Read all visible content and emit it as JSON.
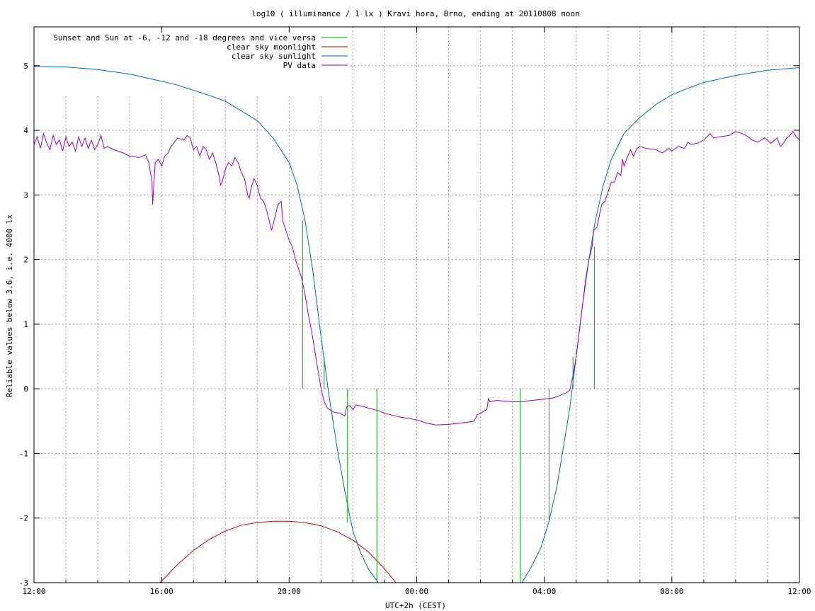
{
  "chart_data": {
    "type": "line",
    "title": "log10 ( illuminance / 1 lx ) Kravi hora, Brno, ending at 20110808 noon",
    "xlabel": "UTC+2h (CEST)",
    "ylabel": "Reliable values below 3.6, i.e. 4000 lx",
    "x_unit": "hours of local time (CEST), continuing past midnight",
    "xlim": [
      12,
      36
    ],
    "ylim": [
      -3,
      5.6
    ],
    "x_ticks": [
      {
        "x": 12,
        "label": "12:00"
      },
      {
        "x": 16,
        "label": "16:00"
      },
      {
        "x": 20,
        "label": "20:00"
      },
      {
        "x": 24,
        "label": "00:00"
      },
      {
        "x": 28,
        "label": "04:00"
      },
      {
        "x": 32,
        "label": "08:00"
      },
      {
        "x": 36,
        "label": "12:00"
      }
    ],
    "x_minor_grid_hours": [
      13,
      14,
      15,
      17,
      18,
      19,
      21,
      22,
      23,
      25,
      26,
      27,
      29,
      30,
      31,
      33,
      34,
      35
    ],
    "y_ticks": [
      -3,
      -2,
      -1,
      0,
      1,
      2,
      3,
      4,
      5
    ],
    "grid": true,
    "legend_position": "top-left",
    "series": [
      {
        "name": "Sunset and Sun at -6, -12 and -18 degrees and vice versa",
        "color": "#00aa00",
        "kind": "vertical-lines",
        "segments": [
          {
            "x": 20.42,
            "y0": 0,
            "y1": 2.6
          },
          {
            "x": 21.1,
            "y0": 0,
            "y1": 0.5
          },
          {
            "x": 21.83,
            "y0": 0,
            "y1": -2.07
          },
          {
            "x": 22.75,
            "y0": -3,
            "y1": 0
          },
          {
            "x": 27.25,
            "y0": -3,
            "y1": 0
          },
          {
            "x": 28.15,
            "y0": -2.05,
            "y1": 0
          },
          {
            "x": 28.9,
            "y0": 0,
            "y1": 0.5
          },
          {
            "x": 29.57,
            "y0": 0,
            "y1": 2.2
          }
        ]
      },
      {
        "name": "clear sky moonlight",
        "color": "#cc0000",
        "kind": "line",
        "points": [
          [
            15.95,
            -3.0
          ],
          [
            16.5,
            -2.72
          ],
          [
            17.0,
            -2.5
          ],
          [
            17.5,
            -2.33
          ],
          [
            18.0,
            -2.2
          ],
          [
            18.5,
            -2.11
          ],
          [
            19.0,
            -2.07
          ],
          [
            19.5,
            -2.05
          ],
          [
            20.0,
            -2.05
          ],
          [
            20.5,
            -2.07
          ],
          [
            21.0,
            -2.12
          ],
          [
            21.5,
            -2.21
          ],
          [
            22.0,
            -2.34
          ],
          [
            22.5,
            -2.53
          ],
          [
            23.0,
            -2.79
          ],
          [
            23.35,
            -3.0
          ]
        ]
      },
      {
        "name": "clear sky sunlight",
        "color": "#0066cc",
        "kind": "line",
        "points": [
          [
            12.0,
            4.99
          ],
          [
            13.0,
            4.98
          ],
          [
            14.0,
            4.94
          ],
          [
            15.0,
            4.87
          ],
          [
            16.0,
            4.76
          ],
          [
            16.5,
            4.7
          ],
          [
            17.0,
            4.62
          ],
          [
            17.5,
            4.54
          ],
          [
            18.0,
            4.45
          ],
          [
            18.5,
            4.3
          ],
          [
            19.0,
            4.15
          ],
          [
            19.5,
            3.88
          ],
          [
            20.0,
            3.5
          ],
          [
            20.25,
            3.15
          ],
          [
            20.5,
            2.6
          ],
          [
            20.75,
            1.8
          ],
          [
            21.0,
            0.8
          ],
          [
            21.25,
            -0.1
          ],
          [
            21.5,
            -0.9
          ],
          [
            21.75,
            -1.6
          ],
          [
            22.0,
            -2.2
          ],
          [
            22.25,
            -2.55
          ],
          [
            22.5,
            -2.8
          ],
          [
            22.8,
            -3.0
          ],
          [
            27.3,
            -3.0
          ],
          [
            27.6,
            -2.75
          ],
          [
            27.9,
            -2.45
          ],
          [
            28.15,
            -2.05
          ],
          [
            28.4,
            -1.5
          ],
          [
            28.6,
            -0.9
          ],
          [
            28.8,
            -0.3
          ],
          [
            29.0,
            0.5
          ],
          [
            29.2,
            1.3
          ],
          [
            29.4,
            2.0
          ],
          [
            29.6,
            2.6
          ],
          [
            29.85,
            3.15
          ],
          [
            30.1,
            3.55
          ],
          [
            30.5,
            3.95
          ],
          [
            31.0,
            4.2
          ],
          [
            31.5,
            4.4
          ],
          [
            32.0,
            4.55
          ],
          [
            32.5,
            4.65
          ],
          [
            33.0,
            4.74
          ],
          [
            34.0,
            4.85
          ],
          [
            35.0,
            4.93
          ],
          [
            36.0,
            4.97
          ]
        ]
      },
      {
        "name": "PV data",
        "color": "#9900cc",
        "kind": "line",
        "points": [
          [
            12.0,
            3.78
          ],
          [
            12.1,
            3.9
          ],
          [
            12.2,
            3.72
          ],
          [
            12.3,
            3.95
          ],
          [
            12.4,
            3.8
          ],
          [
            12.5,
            3.7
          ],
          [
            12.6,
            3.92
          ],
          [
            12.7,
            3.78
          ],
          [
            12.8,
            3.85
          ],
          [
            12.9,
            3.68
          ],
          [
            13.0,
            3.9
          ],
          [
            13.1,
            3.75
          ],
          [
            13.2,
            3.82
          ],
          [
            13.3,
            3.68
          ],
          [
            13.4,
            3.9
          ],
          [
            13.5,
            3.75
          ],
          [
            13.6,
            3.88
          ],
          [
            13.7,
            3.72
          ],
          [
            13.8,
            3.85
          ],
          [
            13.9,
            3.7
          ],
          [
            14.0,
            3.78
          ],
          [
            14.1,
            3.92
          ],
          [
            14.2,
            3.72
          ],
          [
            14.3,
            3.75
          ],
          [
            14.5,
            3.7
          ],
          [
            14.8,
            3.65
          ],
          [
            15.0,
            3.6
          ],
          [
            15.3,
            3.58
          ],
          [
            15.5,
            3.62
          ],
          [
            15.6,
            3.5
          ],
          [
            15.7,
            3.2
          ],
          [
            15.72,
            2.85
          ],
          [
            15.75,
            3.1
          ],
          [
            15.8,
            3.5
          ],
          [
            15.9,
            3.55
          ],
          [
            16.0,
            3.45
          ],
          [
            16.1,
            3.6
          ],
          [
            16.2,
            3.65
          ],
          [
            16.3,
            3.75
          ],
          [
            16.5,
            3.88
          ],
          [
            16.7,
            3.85
          ],
          [
            16.8,
            3.92
          ],
          [
            16.9,
            3.88
          ],
          [
            17.0,
            3.7
          ],
          [
            17.1,
            3.75
          ],
          [
            17.2,
            3.6
          ],
          [
            17.3,
            3.75
          ],
          [
            17.4,
            3.7
          ],
          [
            17.5,
            3.55
          ],
          [
            17.6,
            3.65
          ],
          [
            17.7,
            3.5
          ],
          [
            17.8,
            3.3
          ],
          [
            17.85,
            3.15
          ],
          [
            17.9,
            3.2
          ],
          [
            18.0,
            3.4
          ],
          [
            18.1,
            3.5
          ],
          [
            18.2,
            3.45
          ],
          [
            18.3,
            3.58
          ],
          [
            18.4,
            3.5
          ],
          [
            18.5,
            3.35
          ],
          [
            18.6,
            3.25
          ],
          [
            18.7,
            3.0
          ],
          [
            18.75,
            2.95
          ],
          [
            18.8,
            3.1
          ],
          [
            18.9,
            3.25
          ],
          [
            19.0,
            3.15
          ],
          [
            19.1,
            2.95
          ],
          [
            19.2,
            2.9
          ],
          [
            19.3,
            2.75
          ],
          [
            19.4,
            2.55
          ],
          [
            19.45,
            2.45
          ],
          [
            19.55,
            2.65
          ],
          [
            19.65,
            2.85
          ],
          [
            19.75,
            2.9
          ],
          [
            19.8,
            2.6
          ],
          [
            19.9,
            2.45
          ],
          [
            20.0,
            2.3
          ],
          [
            20.1,
            2.2
          ],
          [
            20.2,
            2.0
          ],
          [
            20.3,
            1.85
          ],
          [
            20.4,
            1.7
          ],
          [
            20.5,
            1.45
          ],
          [
            20.6,
            1.15
          ],
          [
            20.7,
            0.9
          ],
          [
            20.8,
            0.6
          ],
          [
            20.9,
            0.3
          ],
          [
            21.0,
            0.0
          ],
          [
            21.1,
            -0.2
          ],
          [
            21.2,
            -0.3
          ],
          [
            21.4,
            -0.36
          ],
          [
            21.6,
            -0.38
          ],
          [
            21.75,
            -0.42
          ],
          [
            21.8,
            -0.28
          ],
          [
            21.9,
            -0.26
          ],
          [
            22.0,
            -0.32
          ],
          [
            22.1,
            -0.25
          ],
          [
            22.3,
            -0.27
          ],
          [
            22.5,
            -0.3
          ],
          [
            22.8,
            -0.34
          ],
          [
            23.0,
            -0.38
          ],
          [
            23.5,
            -0.44
          ],
          [
            24.0,
            -0.48
          ],
          [
            24.3,
            -0.53
          ],
          [
            24.6,
            -0.56
          ],
          [
            25.0,
            -0.55
          ],
          [
            25.4,
            -0.53
          ],
          [
            25.8,
            -0.5
          ],
          [
            25.9,
            -0.4
          ],
          [
            26.0,
            -0.38
          ],
          [
            26.2,
            -0.32
          ],
          [
            26.25,
            -0.15
          ],
          [
            26.3,
            -0.2
          ],
          [
            26.5,
            -0.18
          ],
          [
            26.8,
            -0.19
          ],
          [
            27.0,
            -0.2
          ],
          [
            27.3,
            -0.2
          ],
          [
            27.6,
            -0.18
          ],
          [
            28.0,
            -0.16
          ],
          [
            28.3,
            -0.14
          ],
          [
            28.5,
            -0.1
          ],
          [
            28.7,
            -0.06
          ],
          [
            28.8,
            -0.02
          ],
          [
            28.9,
            0.2
          ],
          [
            29.0,
            0.5
          ],
          [
            29.1,
            0.9
          ],
          [
            29.2,
            1.3
          ],
          [
            29.3,
            1.7
          ],
          [
            29.4,
            2.0
          ],
          [
            29.5,
            2.2
          ],
          [
            29.55,
            2.45
          ],
          [
            29.65,
            2.5
          ],
          [
            29.8,
            2.85
          ],
          [
            29.9,
            2.9
          ],
          [
            30.0,
            3.05
          ],
          [
            30.1,
            3.2
          ],
          [
            30.2,
            3.2
          ],
          [
            30.3,
            3.35
          ],
          [
            30.4,
            3.3
          ],
          [
            30.45,
            3.55
          ],
          [
            30.5,
            3.45
          ],
          [
            30.6,
            3.58
          ],
          [
            30.7,
            3.7
          ],
          [
            30.8,
            3.6
          ],
          [
            30.9,
            3.72
          ],
          [
            31.0,
            3.75
          ],
          [
            31.2,
            3.72
          ],
          [
            31.5,
            3.7
          ],
          [
            31.7,
            3.65
          ],
          [
            31.9,
            3.72
          ],
          [
            32.0,
            3.68
          ],
          [
            32.2,
            3.75
          ],
          [
            32.4,
            3.72
          ],
          [
            32.5,
            3.82
          ],
          [
            32.6,
            3.78
          ],
          [
            32.8,
            3.8
          ],
          [
            33.0,
            3.85
          ],
          [
            33.1,
            3.9
          ],
          [
            33.2,
            3.95
          ],
          [
            33.3,
            3.88
          ],
          [
            33.5,
            3.9
          ],
          [
            33.8,
            3.92
          ],
          [
            34.0,
            3.98
          ],
          [
            34.2,
            3.95
          ],
          [
            34.4,
            3.9
          ],
          [
            34.5,
            3.85
          ],
          [
            34.7,
            3.82
          ],
          [
            34.9,
            3.88
          ],
          [
            35.0,
            3.85
          ],
          [
            35.1,
            3.8
          ],
          [
            35.3,
            3.88
          ],
          [
            35.4,
            3.75
          ],
          [
            35.5,
            3.8
          ],
          [
            35.6,
            3.88
          ],
          [
            35.7,
            3.92
          ],
          [
            35.8,
            3.98
          ],
          [
            35.9,
            3.9
          ],
          [
            36.0,
            3.85
          ]
        ]
      }
    ]
  }
}
